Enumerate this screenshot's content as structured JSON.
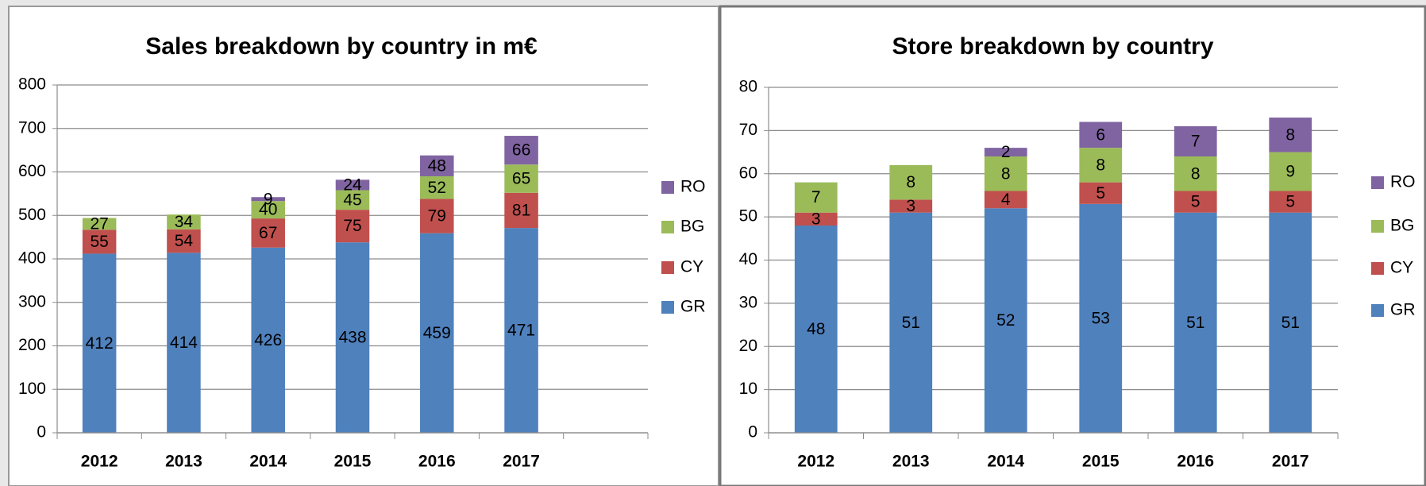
{
  "chart_data": [
    {
      "type": "bar",
      "stacked": true,
      "title": "Sales breakdown by country in m€",
      "categories": [
        "2012",
        "2013",
        "2014",
        "2015",
        "2016",
        "2017",
        null
      ],
      "series": [
        {
          "name": "GR",
          "color": "#4f81bd",
          "values": [
            412,
            414,
            426,
            438,
            459,
            471,
            null
          ]
        },
        {
          "name": "CY",
          "color": "#c0504d",
          "values": [
            55,
            54,
            67,
            75,
            79,
            81,
            null
          ]
        },
        {
          "name": "BG",
          "color": "#9bbb59",
          "values": [
            27,
            34,
            40,
            45,
            52,
            65,
            null
          ]
        },
        {
          "name": "RO",
          "color": "#8064a2",
          "values": [
            null,
            null,
            9,
            24,
            48,
            66,
            null
          ]
        }
      ],
      "ylim": [
        0,
        800
      ],
      "yticks": [
        0,
        100,
        200,
        300,
        400,
        500,
        600,
        700,
        800
      ],
      "grid": true,
      "legend": "right"
    },
    {
      "type": "bar",
      "stacked": true,
      "title": "Store breakdown by country",
      "categories": [
        "2012",
        "2013",
        "2014",
        "2015",
        "2016",
        "2017"
      ],
      "series": [
        {
          "name": "GR",
          "color": "#4f81bd",
          "values": [
            48,
            51,
            52,
            53,
            51,
            51
          ]
        },
        {
          "name": "CY",
          "color": "#c0504d",
          "values": [
            3,
            3,
            4,
            5,
            5,
            5
          ]
        },
        {
          "name": "BG",
          "color": "#9bbb59",
          "values": [
            7,
            8,
            8,
            8,
            8,
            9
          ]
        },
        {
          "name": "RO",
          "color": "#8064a2",
          "values": [
            null,
            null,
            2,
            6,
            7,
            8
          ]
        }
      ],
      "ylim": [
        0,
        80
      ],
      "yticks": [
        0,
        10,
        20,
        30,
        40,
        50,
        60,
        70,
        80
      ],
      "grid": true,
      "legend": "right"
    }
  ]
}
